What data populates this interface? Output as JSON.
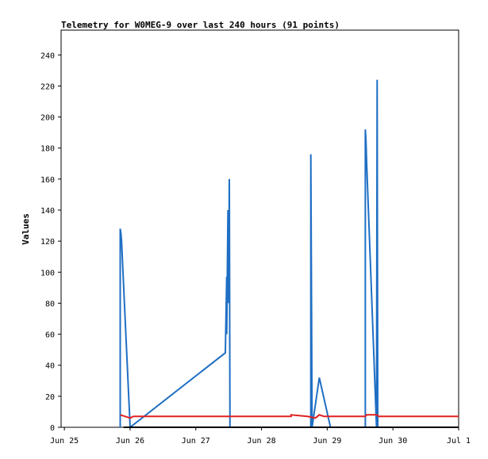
{
  "chart_data": {
    "type": "line",
    "title": "Telemetry for W0MEG-9 over last 240 hours (91 points)",
    "ylabel": "Values",
    "xlabel": "",
    "x_ticks": [
      {
        "label": "Jun 25",
        "t": 0
      },
      {
        "label": "Jun 26",
        "t": 1
      },
      {
        "label": "Jun 27",
        "t": 2
      },
      {
        "label": "Jun 28",
        "t": 3
      },
      {
        "label": "Jun 29",
        "t": 4
      },
      {
        "label": "Jun 30",
        "t": 5
      },
      {
        "label": "Jul 1",
        "t": 6
      }
    ],
    "xlim": [
      -0.05,
      6
    ],
    "ylim": [
      0,
      256
    ],
    "y_ticks": [
      0,
      20,
      40,
      60,
      80,
      100,
      120,
      140,
      160,
      180,
      200,
      220,
      240
    ],
    "grid": false,
    "series": [
      {
        "color": "#1f6fc4",
        "points": [
          [
            0.85,
            0
          ],
          [
            0.85,
            128
          ],
          [
            0.86,
            125
          ],
          [
            0.87,
            120
          ],
          [
            1.0,
            0
          ],
          [
            2.45,
            48
          ],
          [
            2.47,
            97
          ],
          [
            2.47,
            60
          ],
          [
            2.48,
            100
          ],
          [
            2.49,
            140
          ],
          [
            2.5,
            80
          ],
          [
            2.51,
            160
          ],
          [
            2.52,
            0
          ],
          [
            3.75,
            0
          ],
          [
            3.75,
            176
          ],
          [
            3.76,
            90
          ],
          [
            3.77,
            0
          ],
          [
            3.88,
            32
          ],
          [
            4.05,
            0
          ],
          [
            4.58,
            0
          ],
          [
            4.58,
            192
          ],
          [
            4.59,
            185
          ],
          [
            4.6,
            170
          ],
          [
            4.75,
            0
          ],
          [
            4.76,
            224
          ],
          [
            4.77,
            0
          ]
        ]
      },
      {
        "color": "#e02020",
        "points": [
          [
            0.85,
            8
          ],
          [
            1.0,
            6
          ],
          [
            1.05,
            7
          ],
          [
            3.45,
            7
          ],
          [
            3.45,
            8
          ],
          [
            3.7,
            7
          ],
          [
            3.82,
            6
          ],
          [
            3.88,
            8
          ],
          [
            3.95,
            7
          ],
          [
            4.58,
            7
          ],
          [
            4.6,
            8
          ],
          [
            4.76,
            8
          ],
          [
            4.78,
            7
          ],
          [
            6.0,
            7
          ]
        ]
      },
      {
        "color": "#000000",
        "points": [
          [
            0.9,
            0
          ],
          [
            6.0,
            0
          ]
        ]
      }
    ]
  }
}
